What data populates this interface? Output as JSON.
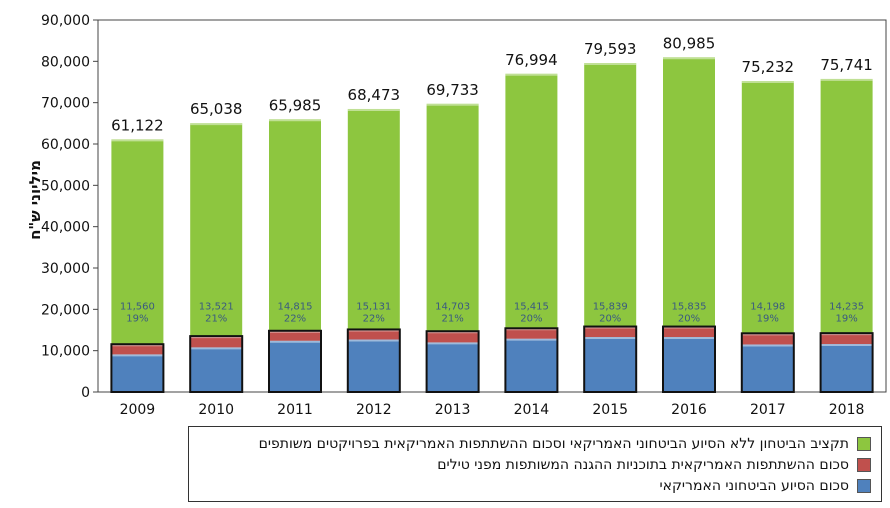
{
  "chart_data": {
    "type": "bar",
    "stacked": true,
    "ylabel": "מיליוני ש\"ח",
    "ylim": [
      0,
      90000
    ],
    "yticks": [
      "0",
      "10,000",
      "20,000",
      "30,000",
      "40,000",
      "50,000",
      "60,000",
      "70,000",
      "80,000",
      "90,000"
    ],
    "categories": [
      "2009",
      "2010",
      "2011",
      "2012",
      "2013",
      "2014",
      "2015",
      "2016",
      "2017",
      "2018"
    ],
    "totals": [
      "61,122",
      "65,038",
      "65,985",
      "68,473",
      "69,733",
      "76,994",
      "79,593",
      "80,985",
      "75,232",
      "75,741"
    ],
    "total_values": [
      61122,
      65038,
      65985,
      68473,
      69733,
      76994,
      79593,
      80985,
      75232,
      75741
    ],
    "us_labels": [
      "11,560",
      "13,521",
      "14,815",
      "15,131",
      "14,703",
      "15,415",
      "15,839",
      "15,835",
      "14,198",
      "14,235"
    ],
    "pct_labels": [
      "19%",
      "21%",
      "22%",
      "22%",
      "21%",
      "20%",
      "20%",
      "20%",
      "19%",
      "19%"
    ],
    "series": [
      {
        "name": "סכום הסיוע הביטחוני האמריקאי",
        "color": "#4f81bd",
        "values": [
          9100,
          10800,
          12400,
          12700,
          12000,
          12900,
          13300,
          13300,
          11500,
          11600
        ]
      },
      {
        "name": "סכום ההשתתפות האמריקאית בתוכניות ההגנה המשותפות מפני טילים",
        "color": "#c0504d",
        "values": [
          2460,
          2721,
          2415,
          2431,
          2703,
          2515,
          2539,
          2535,
          2698,
          2635
        ]
      },
      {
        "name": "תקציב הביטחון ללא הסיוע הביטחוני האמריקאי וסכום ההשתתפות האמריקאית בפרויקטים משותפים",
        "color": "#8dc63f",
        "values": [
          49562,
          51517,
          51170,
          53342,
          55030,
          61579,
          63754,
          65150,
          61034,
          61506
        ]
      }
    ],
    "legend_order": [
      2,
      1,
      0
    ],
    "legend_position": "bottom",
    "grid": false
  }
}
